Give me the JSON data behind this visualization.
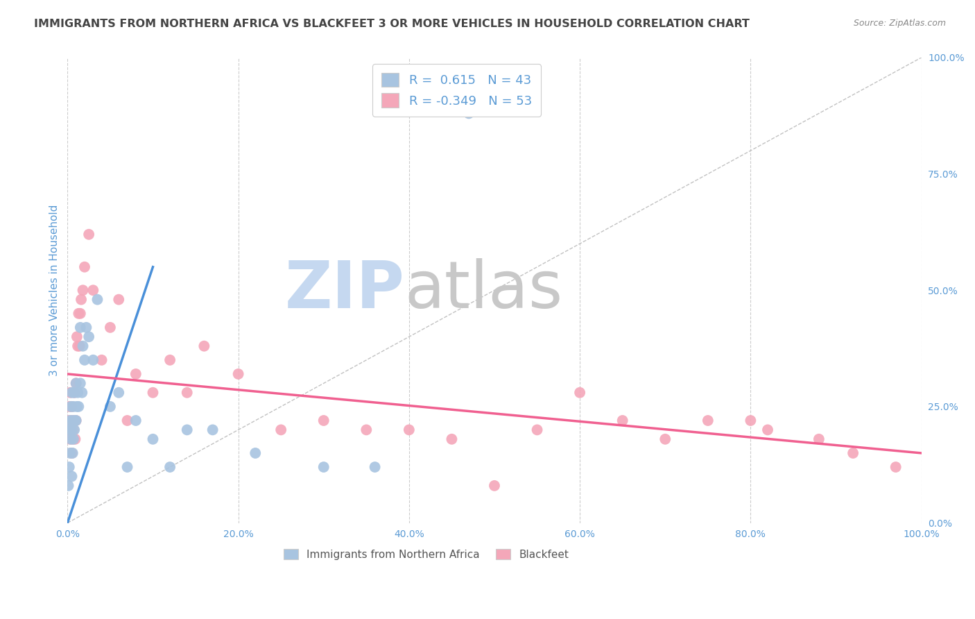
{
  "title": "IMMIGRANTS FROM NORTHERN AFRICA VS BLACKFEET 3 OR MORE VEHICLES IN HOUSEHOLD CORRELATION CHART",
  "source": "Source: ZipAtlas.com",
  "ylabel": "3 or more Vehicles in Household",
  "legend_label1": "Immigrants from Northern Africa",
  "legend_label2": "Blackfeet",
  "r1": 0.615,
  "n1": 43,
  "r2": -0.349,
  "n2": 53,
  "color1": "#a8c4e0",
  "color2": "#f4a7b9",
  "trendline1_color": "#4a90d9",
  "trendline2_color": "#f06090",
  "blue_points_x": [
    0.1,
    0.2,
    0.2,
    0.3,
    0.3,
    0.4,
    0.4,
    0.5,
    0.5,
    0.5,
    0.6,
    0.6,
    0.7,
    0.7,
    0.8,
    0.8,
    0.9,
    1.0,
    1.0,
    1.1,
    1.2,
    1.3,
    1.5,
    1.5,
    1.7,
    1.8,
    2.0,
    2.2,
    2.5,
    3.0,
    3.5,
    5.0,
    6.0,
    7.0,
    8.0,
    10.0,
    12.0,
    14.0,
    17.0,
    22.0,
    30.0,
    36.0,
    47.0
  ],
  "blue_points_y": [
    8,
    12,
    20,
    15,
    22,
    18,
    25,
    10,
    20,
    28,
    15,
    22,
    18,
    25,
    20,
    28,
    22,
    22,
    30,
    25,
    28,
    25,
    30,
    42,
    28,
    38,
    35,
    42,
    40,
    35,
    48,
    25,
    28,
    12,
    22,
    18,
    12,
    20,
    20,
    15,
    12,
    12,
    88
  ],
  "pink_points_x": [
    0.1,
    0.2,
    0.2,
    0.3,
    0.3,
    0.4,
    0.4,
    0.5,
    0.5,
    0.6,
    0.6,
    0.7,
    0.8,
    0.8,
    0.9,
    1.0,
    1.0,
    1.1,
    1.2,
    1.3,
    1.4,
    1.5,
    1.6,
    1.8,
    2.0,
    2.5,
    3.0,
    4.0,
    5.0,
    6.0,
    7.0,
    8.0,
    10.0,
    12.0,
    14.0,
    16.0,
    20.0,
    25.0,
    30.0,
    35.0,
    40.0,
    45.0,
    50.0,
    55.0,
    60.0,
    65.0,
    70.0,
    75.0,
    80.0,
    82.0,
    88.0,
    92.0,
    97.0
  ],
  "pink_points_y": [
    22,
    25,
    20,
    18,
    28,
    20,
    22,
    15,
    25,
    22,
    18,
    20,
    22,
    28,
    18,
    22,
    30,
    40,
    38,
    45,
    38,
    45,
    48,
    50,
    55,
    62,
    50,
    35,
    42,
    48,
    22,
    32,
    28,
    35,
    28,
    38,
    32,
    20,
    22,
    20,
    20,
    18,
    8,
    20,
    28,
    22,
    18,
    22,
    22,
    20,
    18,
    15,
    12
  ],
  "blue_trend_x0": 0,
  "blue_trend_y0": 0,
  "blue_trend_x1": 10,
  "blue_trend_y1": 55,
  "pink_trend_x0": 0,
  "pink_trend_y0": 32,
  "pink_trend_x1": 100,
  "pink_trend_y1": 15,
  "xlim": [
    0,
    100
  ],
  "ylim": [
    0,
    100
  ],
  "xticks": [
    0,
    20,
    40,
    60,
    80,
    100
  ],
  "xticklabels": [
    "0.0%",
    "20.0%",
    "40.0%",
    "60.0%",
    "80.0%",
    "100.0%"
  ],
  "yticks_right": [
    0,
    25,
    50,
    75,
    100
  ],
  "yticklabels_right": [
    "0.0%",
    "25.0%",
    "50.0%",
    "75.0%",
    "100.0%"
  ],
  "grid_color": "#cccccc",
  "background_color": "#ffffff",
  "title_color": "#444444",
  "axis_color": "#5b9bd5",
  "title_fontsize": 11.5,
  "source_color": "#888888"
}
